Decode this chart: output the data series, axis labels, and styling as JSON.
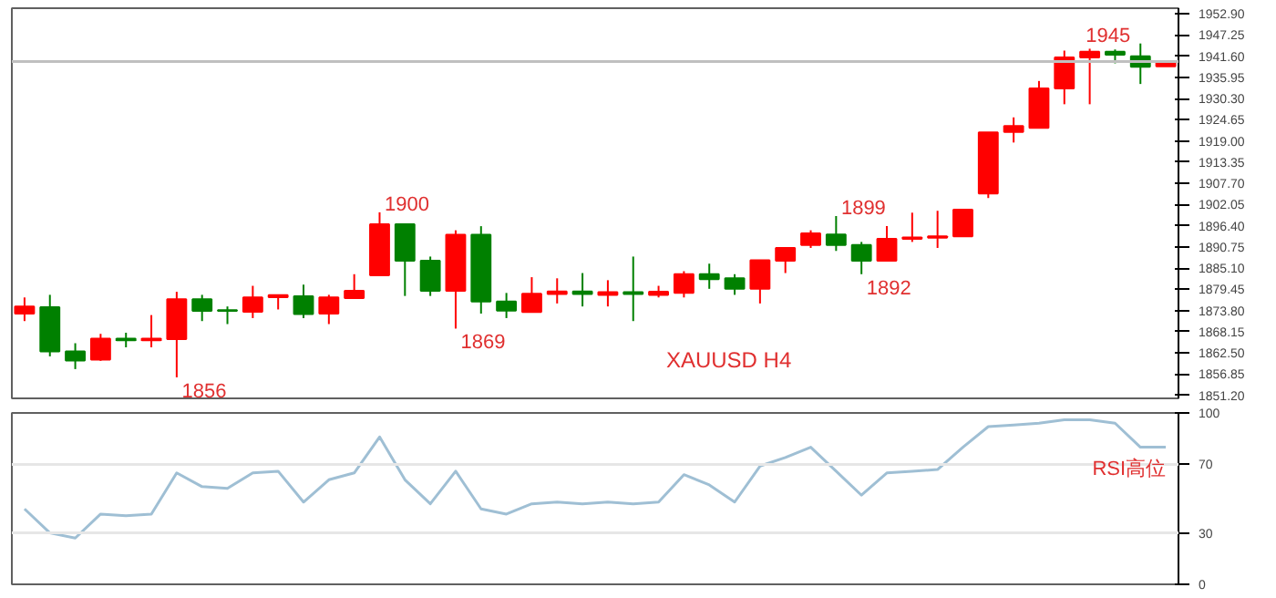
{
  "chart_data": [
    {
      "type": "candlestick",
      "categories": [
        null,
        null,
        null,
        null,
        null,
        null,
        null,
        null,
        null,
        null,
        null,
        null,
        null,
        null,
        null,
        null,
        null,
        null,
        null,
        null,
        null,
        null,
        null,
        null,
        null,
        null,
        null,
        null,
        null,
        null,
        null,
        null,
        null,
        null,
        null,
        null,
        null,
        null,
        null,
        null,
        null,
        null,
        null,
        null,
        null,
        null
      ],
      "ohlc": [
        [
          1873.0,
          1877.3,
          1871.0,
          1874.9
        ],
        [
          1874.7,
          1878.0,
          1861.6,
          1862.9
        ],
        [
          1862.9,
          1865.1,
          1858.2,
          1860.5
        ],
        [
          1860.7,
          1867.6,
          1860.4,
          1866.3
        ],
        [
          1866.3,
          1867.9,
          1864.0,
          1865.9
        ],
        [
          1865.9,
          1872.6,
          1864.0,
          1866.3
        ],
        [
          1866.2,
          1878.8,
          1856,
          1876.8
        ],
        [
          1876.8,
          1878.0,
          1871.0,
          1873.7
        ],
        [
          1873.9,
          1874.9,
          1870.2,
          1873.7
        ],
        [
          1873.5,
          1880.4,
          1871.8,
          1877.3
        ],
        [
          1877.4,
          1878.0,
          1874.1,
          1877.9
        ],
        [
          1877.6,
          1880.7,
          1871.8,
          1872.9
        ],
        [
          1873.0,
          1878.0,
          1870.2,
          1877.3
        ],
        [
          1877.1,
          1883.5,
          1877.0,
          1879.1
        ],
        [
          1883.2,
          1900,
          1883.2,
          1896.8
        ],
        [
          1896.8,
          1896.8,
          1877.7,
          1887.1
        ],
        [
          1887.1,
          1888.2,
          1877.7,
          1879.1
        ],
        [
          1879.1,
          1895.2,
          1869,
          1894.0
        ],
        [
          1894.0,
          1896.3,
          1873.0,
          1876.2
        ],
        [
          1876.2,
          1878.5,
          1871.8,
          1873.8
        ],
        [
          1873.4,
          1882.7,
          1873.4,
          1878.3
        ],
        [
          1878.2,
          1882.4,
          1875.7,
          1878.9
        ],
        [
          1878.9,
          1883.8,
          1874.9,
          1878.2
        ],
        [
          1878.0,
          1881.9,
          1874.9,
          1878.7
        ],
        [
          1878.7,
          1888.2,
          1871.0,
          1878.2
        ],
        [
          1878.0,
          1880.4,
          1877.3,
          1878.8
        ],
        [
          1878.5,
          1884.3,
          1877.3,
          1883.5
        ],
        [
          1883.5,
          1886.3,
          1879.6,
          1882.2
        ],
        [
          1882.4,
          1883.5,
          1878.0,
          1879.6
        ],
        [
          1879.6,
          1887.2,
          1875.7,
          1887.2
        ],
        [
          1887.1,
          1890.5,
          1883.8,
          1890.5
        ],
        [
          1891.3,
          1895.2,
          1890.5,
          1894.4
        ],
        [
          1894.1,
          1899,
          1889.7,
          1891.3
        ],
        [
          1891.3,
          1892.1,
          1883.5,
          1887.1
        ],
        [
          1887.1,
          1896.3,
          1887.1,
          1892.9
        ],
        [
          1892.9,
          1899.9,
          1892.1,
          1893.3
        ],
        [
          1893.2,
          1900.4,
          1890.5,
          1893.6
        ],
        [
          1893.6,
          1900.7,
          1893.6,
          1900.7
        ],
        [
          1905.0,
          1921.3,
          1903.8,
          1921.3
        ],
        [
          1921.4,
          1925.3,
          1918.6,
          1923.0
        ],
        [
          1922.5,
          1935.0,
          1922.5,
          1933.0
        ],
        [
          1933.0,
          1943.1,
          1928.8,
          1941.3
        ],
        [
          1941.3,
          1943.6,
          1928.8,
          1942.8
        ],
        [
          1942.8,
          1943.4,
          1939.7,
          1942.0
        ],
        [
          1941.6,
          1945,
          1934.2,
          1938.8
        ],
        [
          1938.9,
          1940.0,
          1938.9,
          1940.0
        ]
      ],
      "colors": [
        "#ff0000",
        "#008000",
        "#008000",
        "#ff0000",
        "#008000",
        "#ff0000",
        "#ff0000",
        "#008000",
        "#008000",
        "#ff0000",
        "#ff0000",
        "#008000",
        "#ff0000",
        "#ff0000",
        "#ff0000",
        "#008000",
        "#008000",
        "#ff0000",
        "#008000",
        "#008000",
        "#ff0000",
        "#ff0000",
        "#008000",
        "#ff0000",
        "#008000",
        "#ff0000",
        "#ff0000",
        "#008000",
        "#008000",
        "#ff0000",
        "#ff0000",
        "#ff0000",
        "#008000",
        "#008000",
        "#ff0000",
        "#ff0000",
        "#ff0000",
        "#ff0000",
        "#ff0000",
        "#ff0000",
        "#ff0000",
        "#ff0000",
        "#ff0000",
        "#008000",
        "#008000",
        "#ff0000"
      ],
      "value_labels": [
        null,
        null,
        null,
        null,
        null,
        null,
        "1856",
        null,
        null,
        null,
        null,
        null,
        null,
        null,
        "1900",
        null,
        null,
        "1869",
        null,
        null,
        null,
        null,
        null,
        null,
        null,
        null,
        null,
        null,
        null,
        null,
        null,
        null,
        "1899",
        "1892",
        null,
        null,
        null,
        null,
        null,
        null,
        null,
        null,
        null,
        null,
        "1945",
        null
      ],
      "ylim": [
        1850.4,
        1954.4
      ],
      "yticks": [
        {
          "value": 1851.2,
          "label": "1851.20"
        },
        1856.85,
        {
          "value": 1862.5,
          "label": "1862.50"
        },
        1868.15,
        {
          "value": 1873.8,
          "label": "1873.80"
        },
        1879.45,
        {
          "value": 1885.1,
          "label": "1885.10"
        },
        1890.75,
        {
          "value": 1896.4,
          "label": "1896.40"
        },
        1902.05,
        {
          "value": 1907.7,
          "label": "1907.70"
        },
        1913.35,
        {
          "value": 1919,
          "label": "1919.00"
        },
        1924.65,
        {
          "value": 1930.3,
          "label": "1930.30"
        },
        1935.95,
        {
          "value": 1941.6,
          "label": "1941.60"
        },
        1947.25,
        {
          "value": 1952.9,
          "label": "1952.90"
        }
      ],
      "grid": false,
      "ref_lines": [
        {
          "axis": "y",
          "value": 1940.2,
          "color": "#c0c0c0"
        }
      ],
      "annotations": [
        "XAUUSD  H4"
      ]
    },
    {
      "type": "line",
      "categories": [
        null,
        null,
        null,
        null,
        null,
        null,
        null,
        null,
        null,
        null,
        null,
        null,
        null,
        null,
        null,
        null,
        null,
        null,
        null,
        null,
        null,
        null,
        null,
        null,
        null,
        null,
        null,
        null,
        null,
        null,
        null,
        null,
        null,
        null,
        null,
        null,
        null,
        null,
        null,
        null,
        null,
        null,
        null,
        null,
        null,
        null
      ],
      "values": [
        44,
        30,
        27,
        41,
        40,
        41,
        65,
        57,
        56,
        65,
        66,
        48,
        61,
        65,
        86,
        61,
        47,
        66,
        44,
        41,
        47,
        48,
        47,
        48,
        47,
        48,
        64,
        58,
        48,
        69,
        74,
        80,
        66,
        52,
        65,
        66,
        67,
        80,
        92,
        93,
        94,
        96,
        96,
        94,
        80,
        80
      ],
      "color": "#9fbfd4",
      "ylim": [
        0,
        100
      ],
      "yticks": [
        0,
        30,
        70,
        100
      ],
      "grid": false,
      "ref_lines": [
        {
          "axis": "y",
          "value": 70,
          "color": "#e6e6e6"
        },
        {
          "axis": "y",
          "value": 30,
          "color": "#e6e6e6"
        }
      ],
      "annotations": [
        "RSI高位"
      ]
    }
  ]
}
